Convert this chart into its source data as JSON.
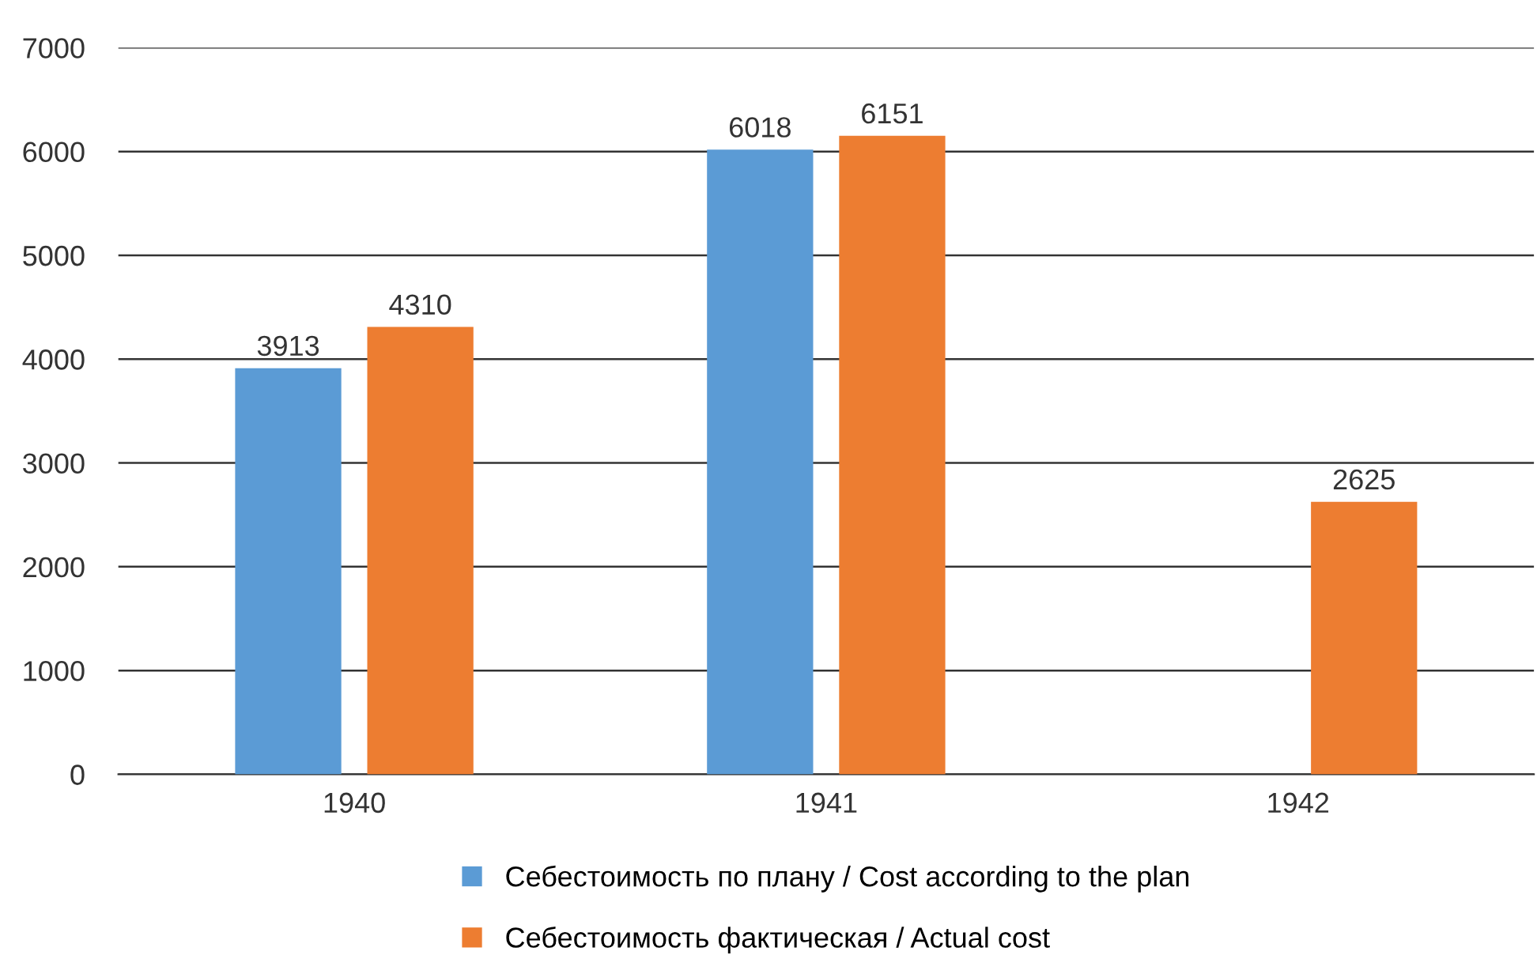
{
  "chart_data": {
    "type": "bar",
    "categories": [
      "1940",
      "1941",
      "1942"
    ],
    "series": [
      {
        "name": "Себестоимость по плану / Cost according to the plan",
        "color": "#5b9bd5",
        "values": [
          3913,
          6018,
          null
        ]
      },
      {
        "name": "Себестоимость фактическая / Actual cost",
        "color": "#ed7d31",
        "values": [
          4310,
          6151,
          2625
        ]
      }
    ],
    "ylim": [
      0,
      7000
    ],
    "yticks": [
      0,
      1000,
      2000,
      3000,
      4000,
      5000,
      6000,
      7000
    ],
    "grid": "y",
    "legend": "bottom",
    "data_labels": true
  }
}
